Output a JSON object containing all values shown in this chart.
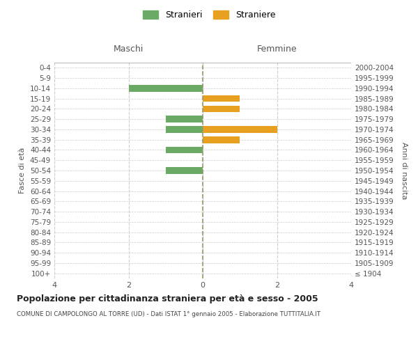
{
  "age_groups": [
    "100+",
    "95-99",
    "90-94",
    "85-89",
    "80-84",
    "75-79",
    "70-74",
    "65-69",
    "60-64",
    "55-59",
    "50-54",
    "45-49",
    "40-44",
    "35-39",
    "30-34",
    "25-29",
    "20-24",
    "15-19",
    "10-14",
    "5-9",
    "0-4"
  ],
  "birth_years": [
    "≤ 1904",
    "1905-1909",
    "1910-1914",
    "1915-1919",
    "1920-1924",
    "1925-1929",
    "1930-1934",
    "1935-1939",
    "1940-1944",
    "1945-1949",
    "1950-1954",
    "1955-1959",
    "1960-1964",
    "1965-1969",
    "1970-1974",
    "1975-1979",
    "1980-1984",
    "1985-1989",
    "1990-1994",
    "1995-1999",
    "2000-2004"
  ],
  "maschi": [
    0,
    0,
    0,
    0,
    0,
    0,
    0,
    0,
    0,
    0,
    1,
    0,
    1,
    0,
    1,
    1,
    0,
    0,
    2,
    0,
    0
  ],
  "femmine": [
    0,
    0,
    0,
    0,
    0,
    0,
    0,
    0,
    0,
    0,
    0,
    0,
    0,
    1,
    2,
    0,
    1,
    1,
    0,
    0,
    0
  ],
  "color_maschi": "#6aaa64",
  "color_femmine": "#e8a020",
  "title": "Popolazione per cittadinanza straniera per età e sesso - 2005",
  "subtitle": "COMUNE DI CAMPOLONGO AL TORRE (UD) - Dati ISTAT 1° gennaio 2005 - Elaborazione TUTTITALIA.IT",
  "xlabel_left": "Maschi",
  "xlabel_right": "Femmine",
  "ylabel_left": "Fasce di età",
  "ylabel_right": "Anni di nascita",
  "legend_maschi": "Stranieri",
  "legend_femmine": "Straniere",
  "xlim": 4,
  "background_color": "#ffffff",
  "grid_color": "#cccccc",
  "xticks": [
    -4,
    -2,
    0,
    2,
    4
  ],
  "xtick_labels": [
    "4",
    "2",
    "0",
    "2",
    "4"
  ]
}
